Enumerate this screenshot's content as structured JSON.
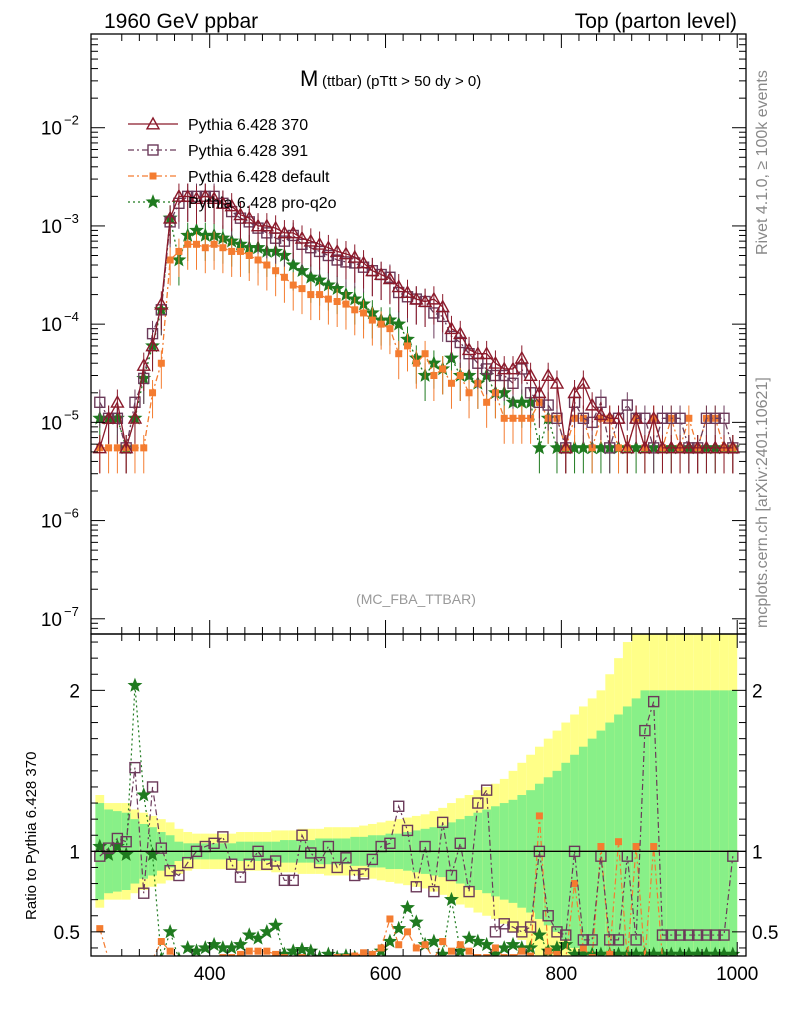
{
  "header": {
    "left": "1960 GeV ppbar",
    "right": "Top (parton level)"
  },
  "chart_data": {
    "type": "line",
    "title_main": "M",
    "title_sub": "(ttbar) (pTtt > 50 dy > 0)",
    "watermark": "(MC_FBA_TTBAR)",
    "side_label_top": "Rivet 4.1.0, ≥ 100k events",
    "side_label_bottom": "mcplots.cern.ch [arXiv:2401.10621]",
    "ratio_ylabel": "Ratio to Pythia 6.428 370",
    "xlim": [
      265,
      1010
    ],
    "ylim_log": [
      7e-08,
      0.09
    ],
    "ratio_ylim": [
      0.35,
      2.35
    ],
    "x_ticks": [
      400,
      600,
      800,
      1000
    ],
    "x_tick_labels": [
      "400",
      "600",
      "800",
      "1000"
    ],
    "y_ticks": [
      1e-07,
      1e-06,
      1e-05,
      0.0001,
      0.001,
      0.01
    ],
    "y_tick_labels": [
      {
        "base": "10",
        "exp": "−7"
      },
      {
        "base": "10",
        "exp": "−6"
      },
      {
        "base": "10",
        "exp": "−5"
      },
      {
        "base": "10",
        "exp": "−4"
      },
      {
        "base": "10",
        "exp": "−3"
      },
      {
        "base": "10",
        "exp": "−2"
      }
    ],
    "ratio_ticks": [
      0.5,
      1,
      2
    ],
    "ratio_tick_labels": [
      "0.5",
      "1",
      "2"
    ],
    "x": [
      275,
      285,
      295,
      305,
      315,
      325,
      335,
      345,
      355,
      365,
      375,
      385,
      395,
      405,
      415,
      425,
      435,
      445,
      455,
      465,
      475,
      485,
      495,
      505,
      515,
      525,
      535,
      545,
      555,
      565,
      575,
      585,
      595,
      605,
      615,
      625,
      635,
      645,
      655,
      665,
      675,
      685,
      695,
      705,
      715,
      725,
      735,
      745,
      755,
      765,
      775,
      785,
      795,
      805,
      815,
      825,
      835,
      845,
      855,
      865,
      875,
      885,
      895,
      905,
      915,
      925,
      935,
      945,
      955,
      965,
      975,
      985,
      995
    ],
    "series": [
      {
        "name": "Pythia 6.428 370",
        "color": "#8b1a2b",
        "marker": "triangle",
        "dash": "",
        "values": [
          5.5e-06,
          1.1e-05,
          1.6e-05,
          5.5e-06,
          1.1e-05,
          3.8e-05,
          6e-05,
          0.00016,
          0.0012,
          0.002,
          0.002,
          0.0019,
          0.002,
          0.0019,
          0.0017,
          0.0016,
          0.0013,
          0.0012,
          0.001,
          0.001,
          0.00095,
          0.00085,
          0.00085,
          0.00075,
          0.0007,
          0.00065,
          0.0006,
          0.00055,
          0.00052,
          0.00048,
          0.00042,
          0.00035,
          0.00032,
          0.00029,
          0.00024,
          0.00021,
          0.00018,
          0.00017,
          0.00018,
          0.00015,
          9e-05,
          8e-05,
          5.5e-05,
          5e-05,
          5e-05,
          4e-05,
          3.5e-05,
          3.5e-05,
          4.5e-05,
          3e-05,
          2e-05,
          3e-05,
          2.5e-05,
          5.5e-06,
          2e-05,
          2.5e-05,
          1.5e-05,
          1.2e-05,
          1.1e-05,
          1.1e-05,
          5.5e-06,
          1.1e-05,
          5.5e-06,
          1.1e-05,
          5.5e-06,
          5.5e-06,
          5.5e-06,
          5.5e-06,
          5.5e-06,
          5.5e-06,
          5.5e-06,
          5.5e-06,
          5.5e-06
        ],
        "ratio": [
          1.0,
          1.0,
          1.0,
          1.0,
          1.0,
          1.0,
          1.0,
          1.0,
          1.0,
          1.0,
          1.0,
          1.0,
          1.0,
          1.0,
          1.0,
          1.0,
          1.0,
          1.0,
          1.0,
          1.0,
          1.0,
          1.0,
          1.0,
          1.0,
          1.0,
          1.0,
          1.0,
          1.0,
          1.0,
          1.0,
          1.0,
          1.0,
          1.0,
          1.0,
          1.0,
          1.0,
          1.0,
          1.0,
          1.0,
          1.0,
          1.0,
          1.0,
          1.0,
          1.0,
          1.0,
          1.0,
          1.0,
          1.0,
          1.0,
          1.0,
          1.0,
          1.0,
          1.0,
          1.0,
          1.0,
          1.0,
          1.0,
          1.0,
          1.0,
          1.0,
          1.0,
          1.0,
          1.0,
          1.0,
          1.0,
          1.0,
          1.0,
          1.0,
          1.0,
          1.0,
          1.0,
          1.0,
          1.0
        ]
      },
      {
        "name": "Pythia 6.428 391",
        "color": "#6b3a5a",
        "marker": "square",
        "dash": "6,3,2,3",
        "values": [
          1.6e-05,
          1.1e-05,
          1.1e-05,
          5.5e-06,
          1.6e-05,
          2.8e-05,
          8e-05,
          0.00014,
          0.0011,
          0.0017,
          0.002,
          0.002,
          0.002,
          0.002,
          0.0017,
          0.0014,
          0.0012,
          0.0011,
          0.00095,
          0.00085,
          0.00075,
          0.0007,
          0.0008,
          0.00065,
          0.0006,
          0.00055,
          0.0005,
          0.00045,
          0.00043,
          0.00042,
          0.00038,
          0.00035,
          0.00032,
          0.0003,
          0.00021,
          0.00019,
          0.00018,
          0.00017,
          0.00013,
          0.00012,
          7.5e-05,
          6.5e-05,
          5e-05,
          4e-05,
          3.5e-05,
          3e-05,
          3e-05,
          2.5e-05,
          3.5e-05,
          2e-05,
          1.6e-05,
          1.5e-05,
          1.1e-05,
          5.5e-06,
          1.6e-05,
          1.1e-05,
          1e-05,
          1.6e-05,
          5.5e-06,
          1.1e-05,
          1.5e-05,
          1.1e-05,
          1.1e-05,
          5.5e-06,
          1.1e-05,
          1.1e-05,
          1.1e-05,
          5.5e-06,
          5.5e-06,
          1.1e-05,
          1.1e-05,
          1.1e-05,
          5.5e-06
        ],
        "ratio": [
          0.97,
          1.02,
          1.08,
          1.06,
          1.52,
          0.74,
          1.4,
          1.02,
          0.88,
          0.85,
          0.93,
          1.0,
          1.03,
          1.05,
          1.09,
          0.92,
          0.84,
          0.92,
          1.0,
          0.92,
          0.94,
          0.82,
          0.82,
          1.1,
          0.99,
          0.93,
          1.03,
          0.9,
          0.96,
          0.85,
          0.86,
          0.95,
          1.03,
          1.05,
          1.28,
          1.13,
          0.78,
          1.03,
          0.75,
          1.18,
          0.85,
          1.05,
          0.75,
          1.3,
          1.38,
          0.5,
          0.55,
          0.53,
          0.5,
          0.53,
          1.0,
          0.6,
          0.5,
          0.48,
          1.0,
          0.45,
          0.45,
          0.97,
          0.45,
          0.45,
          0.97,
          0.45,
          1.75,
          1.93,
          0.48,
          0.48,
          0.48,
          0.48,
          0.48,
          0.48,
          0.48,
          0.48,
          0.97
        ]
      },
      {
        "name": "Pythia 6.428 default",
        "color": "#f47c30",
        "marker": "filled-square",
        "dash": "6,3,2,3",
        "values": [
          5.5e-06,
          5.5e-06,
          5.5e-06,
          5.5e-06,
          5.5e-06,
          5.5e-06,
          2e-05,
          4e-05,
          0.00045,
          0.00055,
          0.00065,
          0.00065,
          0.0006,
          0.00065,
          0.0006,
          0.00055,
          0.00055,
          0.0005,
          0.00045,
          0.0004,
          0.00035,
          0.0003,
          0.00025,
          0.00023,
          0.0002,
          0.0002,
          0.00018,
          0.00017,
          0.00016,
          0.00014,
          0.00013,
          0.00011,
          0.0001,
          9e-05,
          5e-05,
          6e-05,
          4e-05,
          5e-05,
          3e-05,
          3.5e-05,
          2.5e-05,
          3e-05,
          2e-05,
          2.5e-05,
          1.6e-05,
          2e-05,
          1.1e-05,
          1.1e-05,
          1.1e-05,
          1.1e-05,
          1.6e-05,
          1.1e-05,
          1.1e-05,
          5.5e-06,
          1.1e-05,
          1.1e-05,
          5.5e-06,
          1.1e-05,
          1.1e-05,
          5.5e-06,
          5.5e-06,
          1.1e-05,
          5.5e-06,
          1.1e-05,
          5.5e-06,
          1.1e-05,
          5.5e-06,
          1.1e-05,
          5.5e-06,
          1.1e-05,
          1.1e-05,
          5.5e-06,
          5.5e-06
        ],
        "ratio": [
          0.52,
          0.28,
          0.28,
          0.28,
          0.28,
          0.28,
          0.3,
          0.44,
          0.38,
          0.32,
          0.32,
          0.33,
          0.32,
          0.33,
          0.34,
          0.34,
          0.36,
          0.38,
          0.38,
          0.38,
          0.36,
          0.34,
          0.32,
          0.34,
          0.33,
          0.33,
          0.33,
          0.34,
          0.34,
          0.35,
          0.37,
          0.36,
          0.4,
          0.58,
          0.42,
          0.5,
          0.4,
          0.42,
          0.32,
          0.44,
          0.38,
          0.42,
          0.38,
          0.34,
          0.34,
          0.4,
          0.34,
          0.34,
          0.38,
          0.35,
          1.22,
          0.38,
          0.36,
          0.3,
          0.8,
          0.4,
          0.34,
          1.03,
          0.36,
          1.06,
          0.3,
          1.03,
          0.3,
          1.03,
          0.3,
          0.3,
          0.3,
          0.3,
          0.3,
          0.3,
          0.3,
          0.3,
          0.3
        ]
      },
      {
        "name": "Pythia 6.428 pro-q2o",
        "color": "#1f7a1f",
        "marker": "star",
        "dash": "2,3",
        "values": [
          1.1e-05,
          1.1e-05,
          1.1e-05,
          5.5e-06,
          1.1e-05,
          2.8e-05,
          6e-05,
          0.00014,
          0.0012,
          0.00045,
          0.0008,
          0.0009,
          0.0008,
          0.0008,
          0.00075,
          0.0007,
          0.00065,
          0.0006,
          0.0006,
          0.00055,
          0.00055,
          0.0005,
          0.0004,
          0.00035,
          0.0003,
          0.00028,
          0.00025,
          0.00023,
          0.0002,
          0.00018,
          0.00016,
          0.00013,
          0.00011,
          0.00011,
          0.0001,
          7e-05,
          4.5e-05,
          3e-05,
          4e-05,
          3.5e-05,
          4.5e-05,
          3e-05,
          3e-05,
          2.5e-05,
          3e-05,
          2e-05,
          2e-05,
          1.6e-05,
          1.6e-05,
          1.6e-05,
          5.5e-06,
          1.1e-05,
          5.5e-06,
          5.5e-06,
          5.5e-06,
          5.5e-06,
          5.5e-06,
          5.5e-06,
          5.5e-06,
          5.5e-06,
          5.5e-06,
          5.5e-06,
          5.5e-06,
          5.5e-06,
          5.5e-06,
          5.5e-06,
          5.5e-06,
          5.5e-06,
          5.5e-06,
          5.5e-06,
          5.5e-06,
          5.5e-06,
          5.5e-06
        ],
        "ratio": [
          1.03,
          0.98,
          1.03,
          0.98,
          2.03,
          1.35,
          0.98,
          0.3,
          0.5,
          0.3,
          0.4,
          0.38,
          0.4,
          0.42,
          0.4,
          0.4,
          0.42,
          0.48,
          0.46,
          0.5,
          0.54,
          0.36,
          0.38,
          0.39,
          0.38,
          0.34,
          0.36,
          0.34,
          0.35,
          0.34,
          0.34,
          0.34,
          0.38,
          0.44,
          0.52,
          0.65,
          0.56,
          0.42,
          0.44,
          0.36,
          0.7,
          0.38,
          0.46,
          0.44,
          0.42,
          0.36,
          0.4,
          0.42,
          0.4,
          0.4,
          0.48,
          0.38,
          0.4,
          0.42,
          0.36,
          0.36,
          0.36,
          0.36,
          0.36,
          0.36,
          0.36,
          0.36,
          0.36,
          0.36,
          0.36,
          0.36,
          0.36,
          0.36,
          0.36,
          0.36,
          0.36,
          0.36,
          0.36
        ]
      }
    ],
    "band_yellow": [
      1.35,
      1.3,
      1.3,
      1.3,
      1.26,
      1.24,
      1.22,
      1.2,
      1.18,
      1.14,
      1.12,
      1.11,
      1.11,
      1.11,
      1.11,
      1.11,
      1.12,
      1.12,
      1.12,
      1.12,
      1.13,
      1.13,
      1.13,
      1.14,
      1.14,
      1.14,
      1.15,
      1.15,
      1.15,
      1.15,
      1.16,
      1.17,
      1.18,
      1.19,
      1.2,
      1.21,
      1.22,
      1.23,
      1.25,
      1.27,
      1.3,
      1.33,
      1.35,
      1.38,
      1.4,
      1.42,
      1.45,
      1.5,
      1.55,
      1.6,
      1.65,
      1.7,
      1.75,
      1.8,
      1.85,
      1.9,
      1.95,
      2.0,
      2.1,
      2.2,
      2.3,
      2.4,
      2.5,
      2.6,
      2.6,
      2.6,
      2.6,
      2.6,
      2.6,
      2.6,
      2.6,
      2.6,
      2.6
    ],
    "band_green": [
      1.3,
      1.26,
      1.25,
      1.24,
      1.2,
      1.17,
      1.15,
      1.12,
      1.1,
      1.06,
      1.05,
      1.05,
      1.05,
      1.05,
      1.05,
      1.05,
      1.06,
      1.06,
      1.06,
      1.06,
      1.06,
      1.07,
      1.07,
      1.07,
      1.07,
      1.08,
      1.08,
      1.08,
      1.08,
      1.09,
      1.09,
      1.1,
      1.1,
      1.11,
      1.11,
      1.12,
      1.13,
      1.14,
      1.15,
      1.16,
      1.18,
      1.2,
      1.22,
      1.24,
      1.26,
      1.28,
      1.3,
      1.32,
      1.35,
      1.38,
      1.42,
      1.46,
      1.5,
      1.55,
      1.6,
      1.65,
      1.7,
      1.75,
      1.8,
      1.85,
      1.9,
      1.95,
      2.0,
      2.0,
      2.0,
      2.0,
      2.0,
      2.0,
      2.0,
      2.0,
      2.0,
      2.0,
      2.0
    ]
  }
}
